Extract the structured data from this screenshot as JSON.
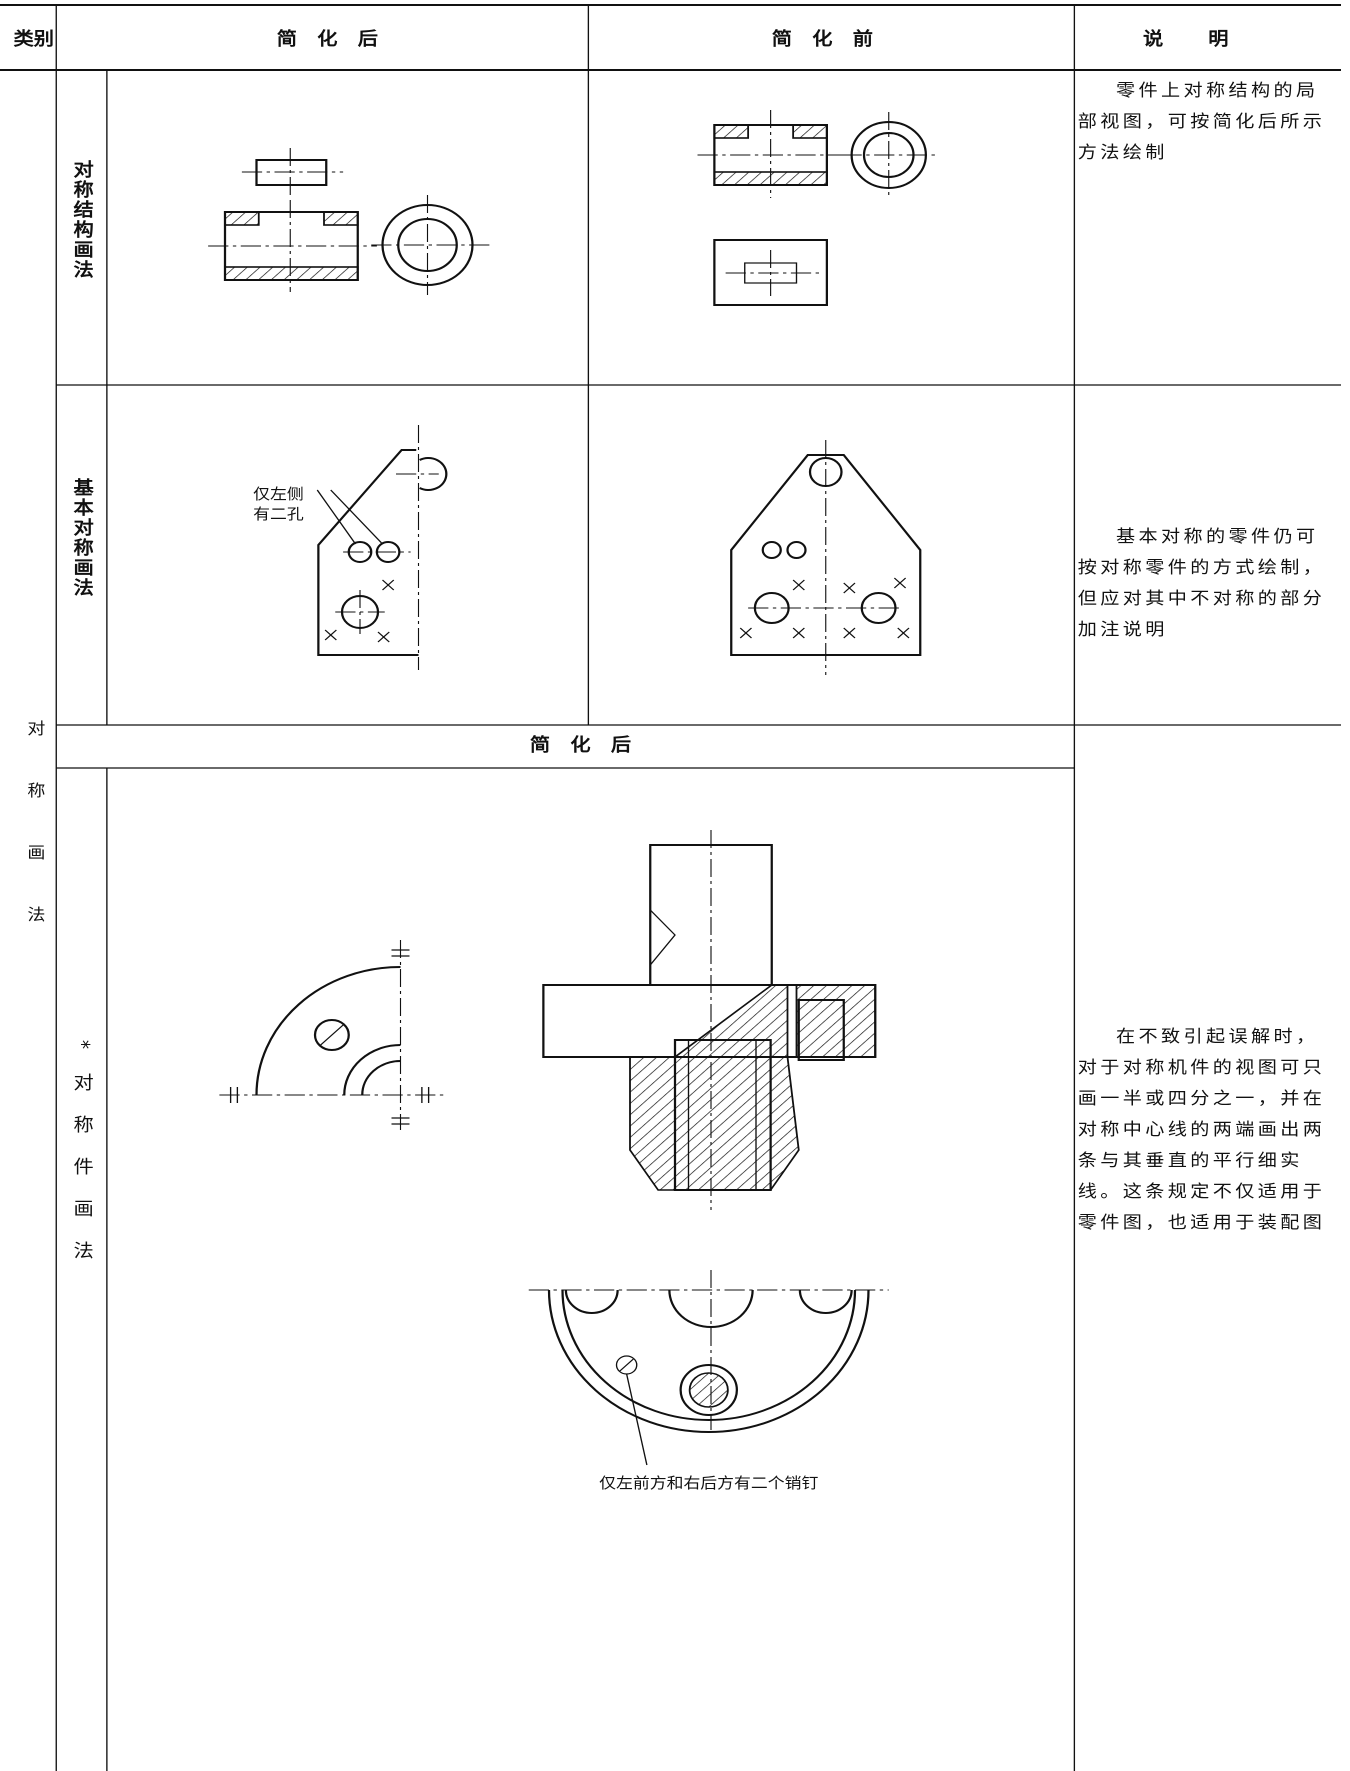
{
  "header": {
    "category": "类别",
    "after": "简化后",
    "before": "简化前",
    "note": "说明"
  },
  "category": "对称画法",
  "rows": [
    {
      "label": "对称结构画法",
      "note": "零件上对称结构的局部视图，可按简化后所示方法绘制"
    },
    {
      "label": "基本对称画法",
      "annotation": [
        "仅左侧",
        "有二孔"
      ],
      "note": "基本对称的零件仍可按对称零件的方式绘制，但应对其中不对称的部分加注说明"
    },
    {
      "label": "*对称件画法",
      "subheader": "简化后",
      "annotation": "仅左前方和右后方有二个销钉",
      "note": "在不致引起误解时，对于对称机件的视图可只画一半或四分之一，并在对称中心线的两端画出两条与其垂直的平行细实线。这条规定不仅适用于零件图，也适用于装配图"
    }
  ]
}
